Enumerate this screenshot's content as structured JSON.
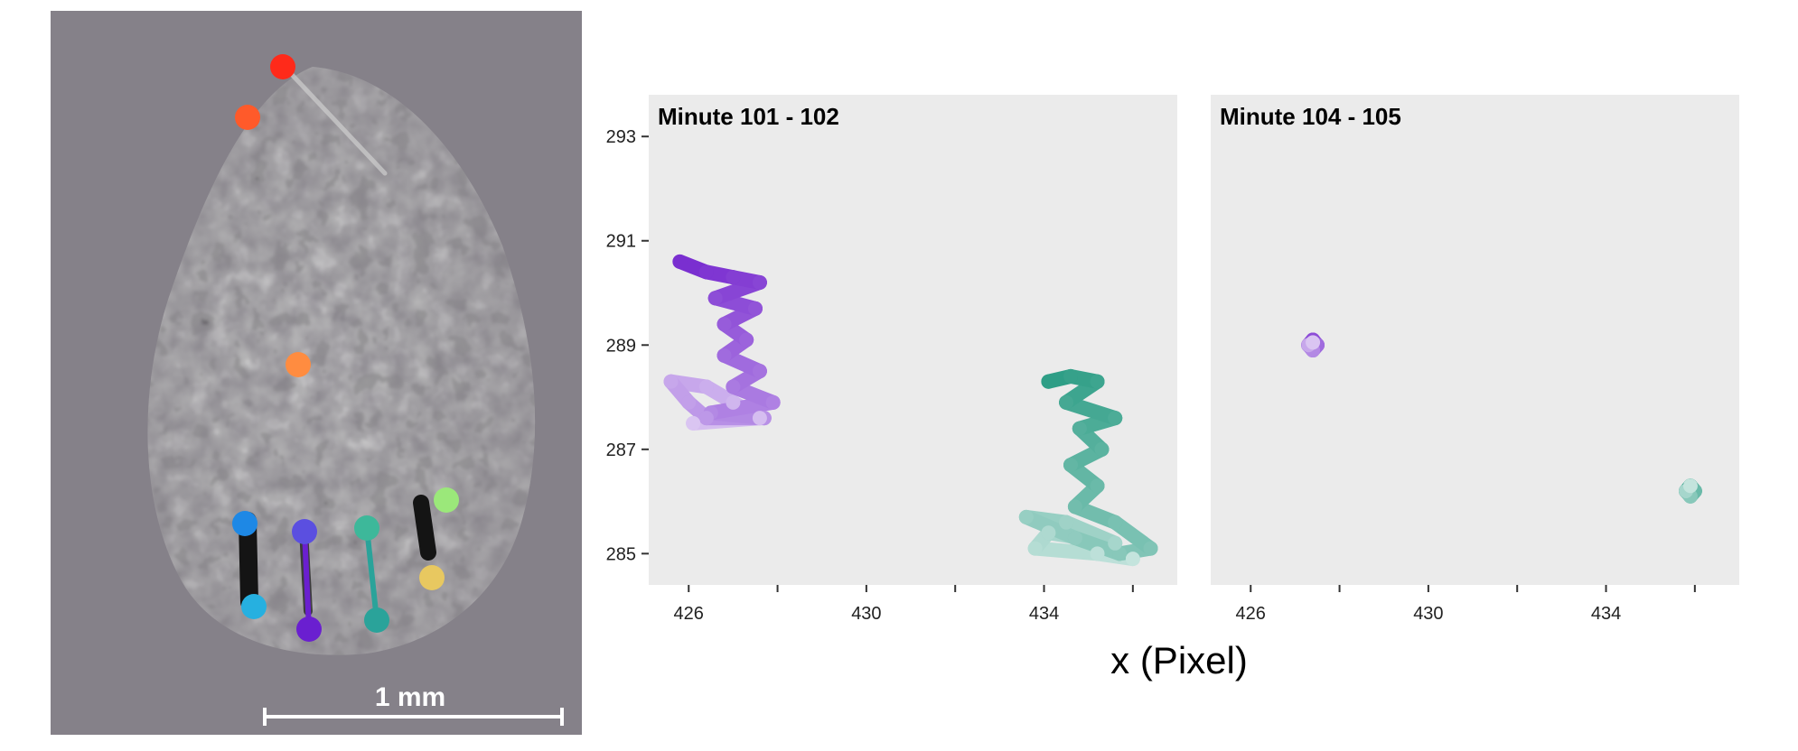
{
  "image": {
    "scale_bar_label": "1 mm",
    "keypoint_colors": [
      "#ff2a1a",
      "#ff5a2a",
      "#ff8c40",
      "#1e88e5",
      "#5b4fe0",
      "#6a1fd0",
      "#3db89a",
      "#2aa39a",
      "#9be87a",
      "#e8c860",
      "#26b0e0"
    ]
  },
  "chart_data": [
    {
      "type": "line",
      "title": "Minute 101 - 102",
      "xlabel": "x (Pixel)",
      "ylabel": "",
      "xlim": [
        425.1,
        437.0
      ],
      "ylim": [
        284.4,
        293.8
      ],
      "x_ticks": [
        426,
        428,
        430,
        432,
        434,
        436
      ],
      "x_tick_labels": [
        "426",
        "",
        "430",
        "",
        "434",
        ""
      ],
      "y_ticks": [
        285,
        287,
        289,
        291,
        293
      ],
      "y_tick_labels": [
        "285",
        "287",
        "289",
        "291",
        "293"
      ],
      "grid": false,
      "series": [
        {
          "color": "#7a2fd0",
          "x": [
            425.8,
            426.4,
            427.0,
            427.6,
            426.6,
            427.5,
            426.8,
            427.3,
            426.8,
            427.6,
            427.0,
            427.9,
            426.5,
            427.7,
            426.4,
            426.0,
            425.6,
            426.4,
            427.0,
            427.6,
            426.1
          ],
          "y": [
            290.6,
            290.4,
            290.3,
            290.2,
            289.9,
            289.7,
            289.4,
            289.1,
            288.8,
            288.5,
            288.2,
            287.9,
            287.7,
            287.6,
            287.6,
            287.9,
            288.3,
            288.2,
            287.9,
            287.6,
            287.5
          ]
        },
        {
          "color": "#2e9e86",
          "x": [
            434.1,
            434.6,
            435.2,
            434.5,
            435.6,
            434.8,
            435.3,
            434.6,
            435.2,
            434.7,
            435.6,
            436.4,
            435.7,
            434.7,
            433.6,
            434.5,
            435.6,
            434.1,
            433.8,
            435.2,
            436.0
          ],
          "y": [
            288.3,
            288.4,
            288.3,
            287.9,
            287.6,
            287.4,
            287.0,
            286.7,
            286.3,
            285.9,
            285.6,
            285.1,
            285.0,
            285.3,
            285.7,
            285.6,
            285.2,
            285.4,
            285.1,
            285.0,
            284.9
          ]
        }
      ]
    },
    {
      "type": "line",
      "title": "Minute 104 - 105",
      "xlabel": "x (Pixel)",
      "ylabel": "",
      "xlim": [
        425.1,
        437.0
      ],
      "ylim": [
        284.4,
        293.8
      ],
      "x_ticks": [
        426,
        428,
        430,
        432,
        434,
        436
      ],
      "x_tick_labels": [
        "426",
        "",
        "430",
        "",
        "434",
        ""
      ],
      "y_ticks": [
        285,
        287,
        289,
        291,
        293
      ],
      "y_tick_labels": [],
      "grid": false,
      "series": [
        {
          "color": "#7a2fd0",
          "x": [
            427.3,
            427.4,
            427.5,
            427.4,
            427.3,
            427.4
          ],
          "y": [
            289.0,
            289.1,
            289.0,
            288.9,
            289.0,
            289.05
          ]
        },
        {
          "color": "#2e9e86",
          "x": [
            435.8,
            435.9,
            436.0,
            435.9,
            435.8,
            435.9
          ],
          "y": [
            286.2,
            286.3,
            286.2,
            286.1,
            286.2,
            286.3
          ]
        }
      ]
    }
  ]
}
